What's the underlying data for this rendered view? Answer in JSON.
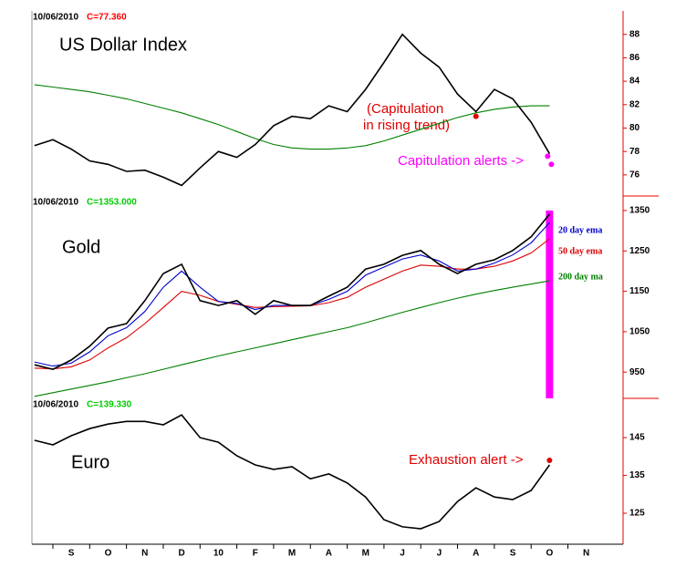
{
  "chart_data": [
    {
      "type": "line",
      "date": "10/06/2010",
      "subtitle": "C=77.360",
      "subtitle_color": "#ff0000",
      "title": "US Dollar Index",
      "annotations": [
        {
          "lines": [
            "(Capitulation",
            "in rising trend)"
          ],
          "color": "#e00000"
        },
        {
          "lines": [
            "Capitulation alerts ->"
          ],
          "color": "#ff00ff"
        }
      ],
      "x": [
        0,
        0.5,
        1,
        1.5,
        2,
        2.5,
        3,
        3.5,
        4,
        4.5,
        5,
        5.5,
        6,
        6.5,
        7,
        7.5,
        8,
        8.5,
        9,
        9.5,
        10,
        10.5,
        11,
        11.5,
        12,
        12.5,
        13,
        13.5,
        14
      ],
      "series": [
        {
          "color": "#000000",
          "values": [
            78.5,
            79,
            78.2,
            77.2,
            76.9,
            76.3,
            76.4,
            75.8,
            75.1,
            76.6,
            78,
            77.5,
            78.6,
            80.2,
            81,
            80.8,
            81.9,
            81.4,
            83.3,
            85.6,
            88,
            86.4,
            85.2,
            82.9,
            81.4,
            83.3,
            82.5,
            80.5,
            77.8
          ]
        },
        {
          "color": "#008000",
          "values": [
            83.7,
            83.5,
            83.3,
            83.1,
            82.8,
            82.5,
            82.1,
            81.7,
            81.3,
            80.8,
            80.3,
            79.7,
            79.1,
            78.6,
            78.3,
            78.2,
            78.2,
            78.3,
            78.5,
            78.9,
            79.4,
            79.9,
            80.4,
            80.9,
            81.3,
            81.6,
            81.8,
            81.9,
            81.9
          ]
        }
      ],
      "alert_points": [
        {
          "x": 12,
          "value": 81.0,
          "color": "#e00000"
        },
        {
          "x": 13.95,
          "value": 77.6,
          "color": "#ff00ff"
        },
        {
          "x": 14.05,
          "value": 76.9,
          "color": "#ff00ff"
        }
      ],
      "xlim": [
        -0.07,
        16
      ],
      "ylim": [
        74.2,
        90
      ],
      "yticks": [
        88,
        86,
        84,
        82,
        80,
        78,
        76
      ]
    },
    {
      "type": "line",
      "date": "10/06/2010",
      "subtitle": "C=1353.000",
      "subtitle_color": "#00cc00",
      "title": "Gold",
      "x": [
        0,
        0.5,
        1,
        1.5,
        2,
        2.5,
        3,
        3.5,
        4,
        4.5,
        5,
        5.5,
        6,
        6.5,
        7,
        7.5,
        8,
        8.5,
        9,
        9.5,
        10,
        10.5,
        11,
        11.5,
        12,
        12.5,
        13,
        13.5,
        14
      ],
      "series": [
        {
          "color": "#000000",
          "values": [
            968,
            957,
            980,
            1014,
            1059,
            1070,
            1127,
            1194,
            1217,
            1127,
            1115,
            1127,
            1093,
            1127,
            1115,
            1115,
            1138,
            1160,
            1205,
            1217,
            1239,
            1251,
            1217,
            1194,
            1217,
            1228,
            1251,
            1285,
            1341
          ]
        },
        {
          "name": "20 day ema",
          "color": "#0000cc",
          "values": [
            975,
            965,
            972,
            1000,
            1040,
            1060,
            1100,
            1160,
            1200,
            1160,
            1125,
            1120,
            1105,
            1115,
            1115,
            1115,
            1130,
            1150,
            1190,
            1210,
            1230,
            1240,
            1225,
            1200,
            1205,
            1220,
            1240,
            1270,
            1320
          ]
        },
        {
          "name": "50 day ema",
          "color": "#dd0000",
          "values": [
            960,
            958,
            963,
            980,
            1010,
            1035,
            1070,
            1110,
            1150,
            1140,
            1125,
            1118,
            1110,
            1112,
            1113,
            1114,
            1122,
            1135,
            1160,
            1180,
            1200,
            1215,
            1212,
            1205,
            1205,
            1212,
            1225,
            1245,
            1280
          ]
        },
        {
          "name": "200 day ma",
          "color": "#008000",
          "values": [
            890,
            899,
            908,
            917,
            926,
            936,
            946,
            957,
            968,
            979,
            990,
            1000,
            1010,
            1020,
            1030,
            1040,
            1050,
            1060,
            1072,
            1085,
            1098,
            1110,
            1122,
            1133,
            1143,
            1152,
            1160,
            1168,
            1176
          ]
        }
      ],
      "alert_bar": {
        "x": 14,
        "value": 1350,
        "color": "#ff00ff"
      },
      "xlim": [
        -0.07,
        16
      ],
      "ylim": [
        885,
        1386
      ],
      "yticks": [
        1350,
        1250,
        1150,
        1050,
        950
      ]
    },
    {
      "type": "line",
      "date": "10/06/2010",
      "subtitle": "C=139.330",
      "subtitle_color": "#00cc00",
      "title": "Euro",
      "annotations": [
        {
          "lines": [
            "Exhaustion alert ->"
          ],
          "color": "#e00000"
        }
      ],
      "x": [
        0,
        0.5,
        1,
        1.5,
        2,
        2.5,
        3,
        3.5,
        4,
        4.5,
        5,
        5.5,
        6,
        6.5,
        7,
        7.5,
        8,
        8.5,
        9,
        9.5,
        10,
        10.5,
        11,
        11.5,
        12,
        12.5,
        13,
        13.5,
        14
      ],
      "series": [
        {
          "color": "#000000",
          "values": [
            144.3,
            143.1,
            145.5,
            147.4,
            148.6,
            149.3,
            149.3,
            148.4,
            151,
            145,
            143.8,
            140.2,
            137.8,
            136.6,
            137.3,
            134.1,
            135.4,
            133,
            129.3,
            123.3,
            121.4,
            120.9,
            122.8,
            128.1,
            131.7,
            129.3,
            128.6,
            131,
            137.8
          ]
        }
      ],
      "alert_points": [
        {
          "x": 14,
          "value": 139,
          "color": "#e00000"
        }
      ],
      "xlim": [
        -0.07,
        16
      ],
      "ylim": [
        116.8,
        155.4
      ],
      "yticks": [
        145,
        135,
        125
      ],
      "xticks": [
        {
          "value": 1,
          "label": "S"
        },
        {
          "value": 2,
          "label": "O"
        },
        {
          "value": 3,
          "label": "N"
        },
        {
          "value": 4,
          "label": "D"
        },
        {
          "value": 5,
          "label": "10"
        },
        {
          "value": 6,
          "label": "F"
        },
        {
          "value": 7,
          "label": "M"
        },
        {
          "value": 8,
          "label": "A"
        },
        {
          "value": 9,
          "label": "M"
        },
        {
          "value": 10,
          "label": "J"
        },
        {
          "value": 11,
          "label": "J"
        },
        {
          "value": 12,
          "label": "A"
        },
        {
          "value": 13,
          "label": "S"
        },
        {
          "value": 14,
          "label": "O"
        },
        {
          "value": 15,
          "label": "N"
        }
      ]
    }
  ]
}
